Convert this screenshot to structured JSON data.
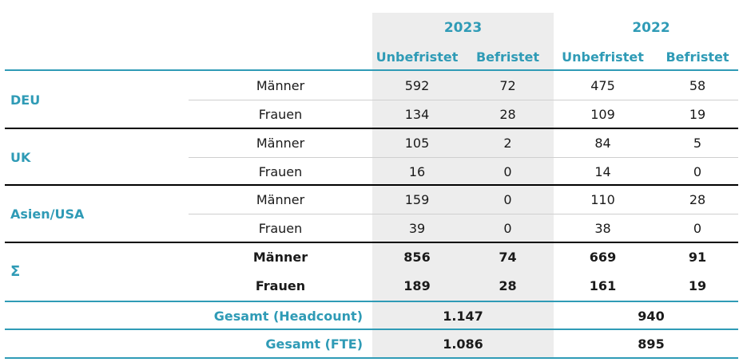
{
  "columns": {
    "years": [
      "2023",
      "2022"
    ],
    "subheaders": [
      "Unbefristet",
      "Befristet",
      "Unbefristet",
      "Befristet"
    ]
  },
  "colors": {
    "accent": "#2f9bb6",
    "highlight": "#ededed"
  },
  "groups": [
    {
      "region": "DEU",
      "rows": [
        {
          "label": "Männer",
          "values": [
            "592",
            "72",
            "475",
            "58"
          ]
        },
        {
          "label": "Frauen",
          "values": [
            "134",
            "28",
            "109",
            "19"
          ]
        }
      ]
    },
    {
      "region": "UK",
      "rows": [
        {
          "label": "Männer",
          "values": [
            "105",
            "2",
            "84",
            "5"
          ]
        },
        {
          "label": "Frauen",
          "values": [
            "16",
            "0",
            "14",
            "0"
          ]
        }
      ]
    },
    {
      "region": "Asien/USA",
      "rows": [
        {
          "label": "Männer",
          "values": [
            "159",
            "0",
            "110",
            "28"
          ]
        },
        {
          "label": "Frauen",
          "values": [
            "39",
            "0",
            "38",
            "0"
          ]
        }
      ]
    },
    {
      "region": "Σ",
      "rows": [
        {
          "label": "Männer",
          "values": [
            "856",
            "74",
            "669",
            "91"
          ]
        },
        {
          "label": "Frauen",
          "values": [
            "189",
            "28",
            "161",
            "19"
          ]
        }
      ]
    }
  ],
  "totals": [
    {
      "label": "Gesamt (Headcount)",
      "values": [
        "1.147",
        "940"
      ]
    },
    {
      "label": "Gesamt (FTE)",
      "values": [
        "1.086",
        "895"
      ]
    }
  ]
}
